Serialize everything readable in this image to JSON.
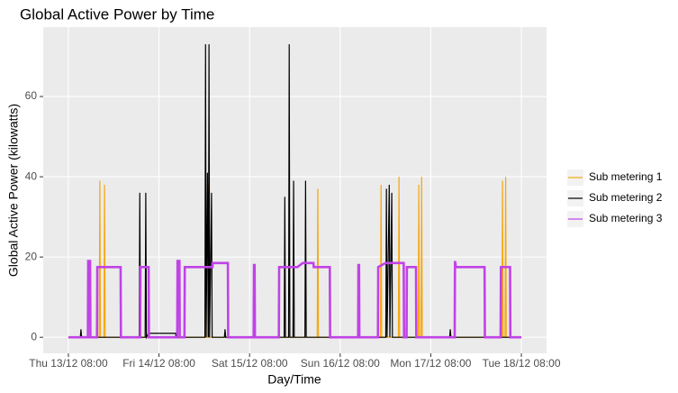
{
  "chart_data": {
    "type": "line",
    "title": "Global Active Power by Time",
    "x_label": "Day/Time",
    "y_label": "Global Active Power (kilowatts)",
    "xlim": [
      "13/12 01:20",
      "18/12 14:40"
    ],
    "ylim": [
      -4,
      77.3
    ],
    "xticks": [
      {
        "value": "13/12 08:00",
        "label": "Thu 13/12 08:00"
      },
      {
        "value": "14/12 08:00",
        "label": "Fri 14/12 08:00"
      },
      {
        "value": "15/12 08:00",
        "label": "Sat 15/12 08:00"
      },
      {
        "value": "16/12 08:00",
        "label": "Sun 16/12 08:00"
      },
      {
        "value": "17/12 08:00",
        "label": "Mon 17/12 08:00"
      },
      {
        "value": "18/12 08:00",
        "label": "Tue 18/12 08:00"
      }
    ],
    "yticks": [
      0,
      20,
      40,
      60
    ],
    "grid": true,
    "legend_position": "right",
    "series": [
      {
        "name": "Sub metering 1",
        "color": "#F5A70F",
        "x": [
          "13/12 08:00",
          "13/12 16:10",
          "13/12 16:20",
          "13/12 16:30",
          "13/12 17:25",
          "13/12 17:35",
          "13/12 17:45",
          "14/12 20:50",
          "14/12 21:00",
          "14/12 21:10",
          "16/12 01:55",
          "16/12 02:05",
          "16/12 02:15",
          "16/12 18:40",
          "16/12 18:50",
          "16/12 19:00",
          "16/12 23:25",
          "16/12 23:35",
          "16/12 23:45",
          "17/12 04:40",
          "17/12 04:50",
          "17/12 05:00",
          "17/12 05:25",
          "17/12 05:35",
          "17/12 05:45",
          "18/12 02:50",
          "18/12 03:00",
          "18/12 03:10",
          "18/12 03:40",
          "18/12 03:50",
          "18/12 04:00",
          "18/12 08:00"
        ],
        "values": [
          0,
          0,
          39,
          0,
          0,
          38,
          0,
          0,
          38,
          0,
          0,
          37,
          0,
          0,
          38,
          0,
          0,
          40,
          0,
          0,
          38,
          0,
          0,
          40,
          0,
          0,
          39,
          0,
          0,
          40,
          0,
          0
        ]
      },
      {
        "name": "Sub metering 2",
        "color": "#000000",
        "x": [
          "13/12 08:00",
          "13/12 11:10",
          "13/12 11:20",
          "13/12 11:30",
          "14/12 02:45",
          "14/12 02:55",
          "14/12 03:05",
          "14/12 04:20",
          "14/12 04:30",
          "14/12 04:40",
          "14/12 05:15",
          "14/12 12:25",
          "14/12 12:30",
          "14/12 20:10",
          "14/12 20:20",
          "14/12 20:30",
          "14/12 20:50",
          "14/12 21:05",
          "14/12 21:15",
          "14/12 21:25",
          "14/12 21:55",
          "14/12 22:05",
          "15/12 01:20",
          "15/12 01:30",
          "15/12 01:40",
          "15/12 17:10",
          "15/12 17:20",
          "15/12 17:30",
          "15/12 18:20",
          "15/12 18:30",
          "15/12 18:40",
          "15/12 19:30",
          "15/12 19:40",
          "15/12 19:50",
          "15/12 22:40",
          "15/12 22:50",
          "15/12 23:00",
          "16/12 20:05",
          "16/12 20:15",
          "16/12 20:25",
          "16/12 21:00",
          "16/12 21:10",
          "16/12 21:40",
          "16/12 21:50",
          "17/12 13:00",
          "17/12 13:10",
          "17/12 13:20",
          "18/12 08:00"
        ],
        "values": [
          0,
          0,
          2,
          0,
          0,
          36,
          0,
          0,
          36,
          0,
          1,
          1,
          0,
          0,
          73,
          0,
          41,
          0,
          73,
          0,
          36,
          0,
          0,
          2,
          0,
          0,
          35,
          0,
          0,
          73,
          0,
          0,
          39,
          0,
          0,
          39,
          0,
          0,
          37,
          0,
          38,
          0,
          36,
          0,
          0,
          2,
          0,
          0
        ]
      },
      {
        "name": "Sub metering 3",
        "color": "#C043E6",
        "x": [
          "13/12 08:00",
          "13/12 13:10",
          "13/12 13:15",
          "13/12 13:45",
          "13/12 13:50",
          "13/12 15:35",
          "13/12 15:40",
          "13/12 21:50",
          "13/12 21:55",
          "14/12 03:00",
          "14/12 03:05",
          "14/12 05:15",
          "14/12 05:20",
          "14/12 12:50",
          "14/12 12:55",
          "14/12 13:25",
          "14/12 13:30",
          "14/12 14:45",
          "14/12 14:50",
          "14/12 22:10",
          "14/12 22:15",
          "15/12 02:15",
          "15/12 02:20",
          "15/12 09:05",
          "15/12 09:10",
          "15/12 09:20",
          "15/12 09:25",
          "15/12 15:45",
          "15/12 15:50",
          "15/12 20:40",
          "15/12 22:05",
          "16/12 00:55",
          "16/12 01:00",
          "16/12 05:15",
          "16/12 05:20",
          "16/12 12:45",
          "16/12 12:50",
          "16/12 13:00",
          "16/12 13:05",
          "16/12 18:00",
          "16/12 18:05",
          "16/12 20:00",
          "17/12 00:50",
          "17/12 00:55",
          "17/12 01:35",
          "17/12 01:40",
          "17/12 04:05",
          "17/12 04:10",
          "17/12 14:20",
          "17/12 14:25",
          "17/12 14:40",
          "17/12 22:15",
          "17/12 22:20",
          "18/12 02:30",
          "18/12 02:35",
          "18/12 05:00",
          "18/12 05:05",
          "18/12 08:00"
        ],
        "values": [
          0,
          0,
          19,
          19,
          0,
          0,
          17.5,
          17.5,
          0,
          0,
          17.5,
          17.5,
          0,
          0,
          19,
          19,
          0,
          0,
          17.5,
          17.5,
          18.5,
          18.5,
          0,
          0,
          18,
          18,
          0,
          0,
          17.5,
          17.5,
          18.5,
          18.5,
          17.5,
          17.5,
          0,
          0,
          18,
          18,
          0,
          0,
          17.5,
          18.5,
          18.5,
          0,
          0,
          17.5,
          17.5,
          0,
          0,
          19,
          17.5,
          17.5,
          0,
          0,
          17.5,
          17.5,
          0,
          0
        ]
      }
    ]
  }
}
